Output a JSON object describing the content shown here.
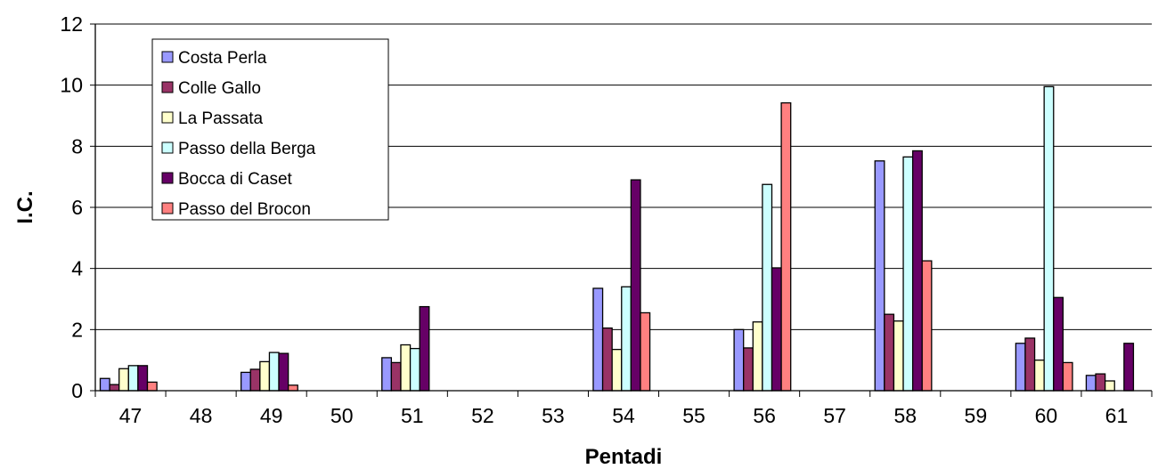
{
  "chart_data": {
    "type": "bar",
    "title": "",
    "xlabel": "Pentadi",
    "ylabel": "I.C.",
    "ylim": [
      0,
      12
    ],
    "yticks": [
      0,
      2,
      4,
      6,
      8,
      10,
      12
    ],
    "grid": "horizontal",
    "legend_position": "top-left",
    "categories": [
      "47",
      "48",
      "49",
      "50",
      "51",
      "52",
      "53",
      "54",
      "55",
      "56",
      "57",
      "58",
      "59",
      "60",
      "61"
    ],
    "series": [
      {
        "name": "Costa Perla",
        "color": "#9999FF",
        "values": [
          0.4,
          null,
          0.6,
          null,
          1.08,
          null,
          null,
          3.35,
          null,
          2.0,
          null,
          7.52,
          null,
          1.55,
          0.5
        ]
      },
      {
        "name": "Colle Gallo",
        "color": "#993366",
        "values": [
          0.2,
          null,
          0.7,
          null,
          0.92,
          null,
          null,
          2.05,
          null,
          1.4,
          null,
          2.5,
          null,
          1.72,
          0.55
        ]
      },
      {
        "name": "La Passata",
        "color": "#FFFFCC",
        "values": [
          0.72,
          null,
          0.95,
          null,
          1.5,
          null,
          null,
          1.35,
          null,
          2.25,
          null,
          2.28,
          null,
          1.0,
          0.32
        ]
      },
      {
        "name": "Passo della Berga",
        "color": "#CCFFFF",
        "values": [
          0.82,
          null,
          1.25,
          null,
          1.38,
          null,
          null,
          3.4,
          null,
          6.75,
          null,
          7.65,
          null,
          9.95,
          null
        ]
      },
      {
        "name": "Bocca di Caset",
        "color": "#660066",
        "values": [
          0.82,
          null,
          1.22,
          null,
          2.75,
          null,
          null,
          6.9,
          null,
          4.02,
          null,
          7.85,
          null,
          3.05,
          1.55
        ]
      },
      {
        "name": "Passo del Brocon",
        "color": "#FF8080",
        "values": [
          0.28,
          null,
          0.18,
          null,
          null,
          null,
          null,
          2.55,
          null,
          9.42,
          null,
          4.25,
          null,
          0.92,
          null
        ]
      }
    ]
  }
}
